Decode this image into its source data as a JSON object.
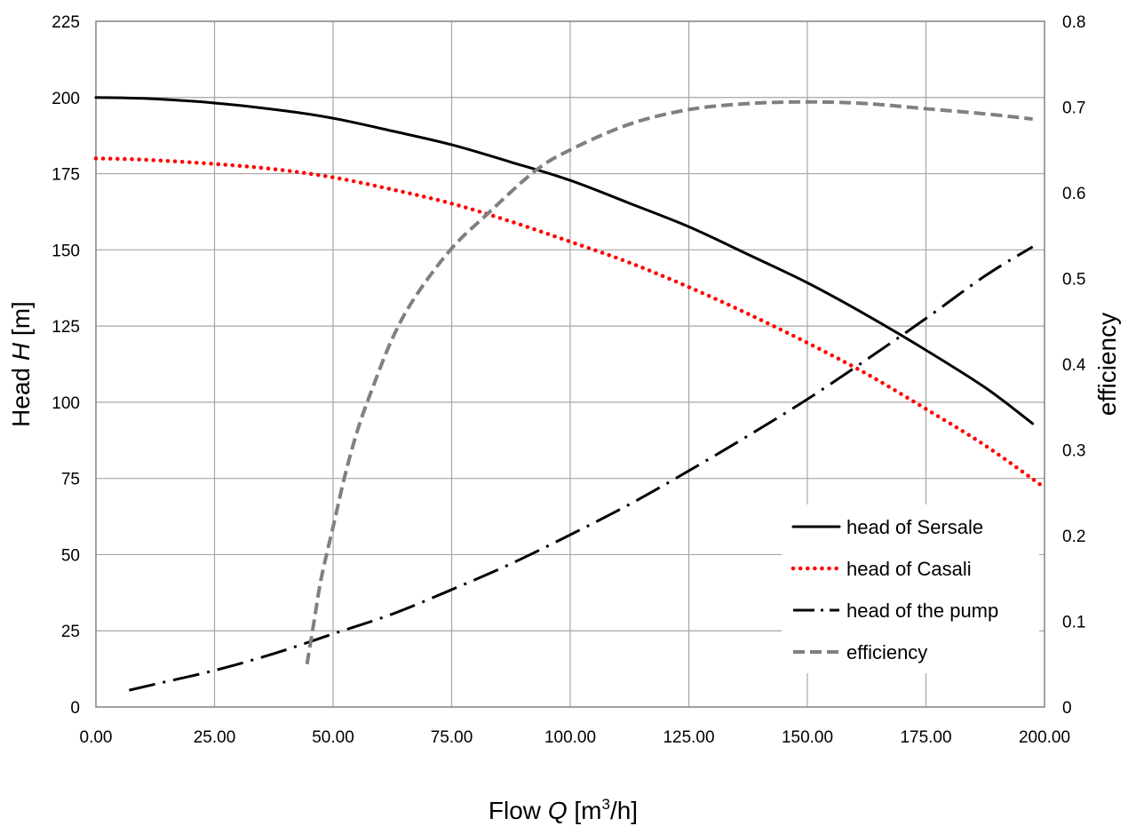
{
  "chart_data": {
    "type": "line",
    "title": "",
    "xlabel": {
      "prefix": "Flow ",
      "var": "Q",
      "unit_open": " [m",
      "unit_sup": "3",
      "unit_close": "/h]"
    },
    "ylabel": {
      "prefix": "Head ",
      "var": "H",
      "unit": " [m]"
    },
    "y2label": "efficiency",
    "xlim": [
      0,
      200
    ],
    "ylim": [
      0,
      225
    ],
    "y2lim": [
      0,
      0.8
    ],
    "x_ticks": [
      "0.00",
      "25.00",
      "50.00",
      "75.00",
      "100.00",
      "125.00",
      "150.00",
      "175.00",
      "200.00"
    ],
    "y_ticks": [
      "0",
      "25",
      "50",
      "75",
      "100",
      "125",
      "150",
      "175",
      "200",
      "225"
    ],
    "y2_ticks": [
      "0",
      "0.1",
      "0.2",
      "0.3",
      "0.4",
      "0.5",
      "0.6",
      "0.7",
      "0.8"
    ],
    "grid": true,
    "legend_position": "bottom-right",
    "series": [
      {
        "name": "head of Sersale",
        "axis": "left",
        "color": "#000000",
        "style": "solid",
        "x": [
          0,
          10,
          25,
          40,
          50,
          62.5,
          75,
          87.5,
          100,
          112.5,
          125,
          137.5,
          150,
          162.5,
          175,
          187.5,
          197.5
        ],
        "y": [
          200,
          199.7,
          198.2,
          195.6,
          193.2,
          189,
          184.5,
          178.8,
          172.8,
          165.3,
          157.6,
          148.5,
          139.2,
          128.6,
          117.1,
          104.8,
          93
        ]
      },
      {
        "name": "head of Casali",
        "axis": "left",
        "color": "#ff0000",
        "style": "dotted",
        "x": [
          0,
          10,
          25,
          37.5,
          50,
          62.5,
          75,
          87.5,
          100,
          112.5,
          125,
          137.5,
          150,
          162.5,
          175,
          187.5,
          200
        ],
        "y": [
          180,
          179.6,
          178.2,
          176.5,
          173.8,
          169.8,
          165.2,
          159.3,
          152.7,
          145.8,
          137.8,
          129,
          119.5,
          109.3,
          97.8,
          85.8,
          72
        ]
      },
      {
        "name": "head of the pump",
        "axis": "left",
        "color": "#000000",
        "style": "dash-dot",
        "x": [
          7,
          12.5,
          25,
          37.5,
          50,
          62.5,
          75,
          87.5,
          100,
          112.5,
          125,
          137.5,
          150,
          162.5,
          175,
          187.5,
          197.5
        ],
        "y": [
          5.5,
          7.5,
          12,
          17.5,
          24,
          30.5,
          38.5,
          47,
          56.5,
          66.5,
          77.5,
          89,
          101,
          114,
          127.5,
          141.5,
          151
        ]
      },
      {
        "name": "efficiency",
        "axis": "right",
        "color": "#808080",
        "style": "dashed",
        "x": [
          44.5,
          46,
          47.5,
          50,
          52.5,
          55,
          57.5,
          62.5,
          67.5,
          75,
          82.5,
          92.5,
          100,
          112.5,
          125,
          137.5,
          150,
          162.5,
          175,
          187.5,
          197.5
        ],
        "y": [
          0.05,
          0.1,
          0.15,
          0.21,
          0.27,
          0.32,
          0.36,
          0.43,
          0.48,
          0.535,
          0.575,
          0.625,
          0.65,
          0.68,
          0.697,
          0.704,
          0.706,
          0.704,
          0.698,
          0.692,
          0.686
        ]
      }
    ]
  }
}
